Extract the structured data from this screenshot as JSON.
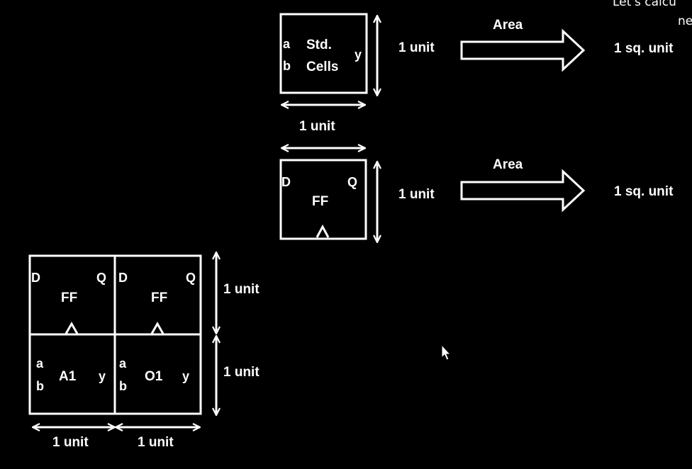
{
  "caption": {
    "line1": "Let's calcu",
    "line2": "ne"
  },
  "std_cell": {
    "pin_a": "a",
    "pin_b": "b",
    "pin_y": "y",
    "name_line1": "Std.",
    "name_line2": "Cells",
    "height_label": "1 unit",
    "width_label": "1 unit",
    "area_label": "Area",
    "area_result": "1 sq. unit"
  },
  "ff_cell": {
    "pin_d": "D",
    "pin_q": "Q",
    "name": "FF",
    "height_label": "1 unit",
    "area_label": "Area",
    "area_result": "1 sq. unit"
  },
  "grid": {
    "ff_left": {
      "pin_d": "D",
      "pin_q": "Q",
      "name": "FF"
    },
    "ff_right": {
      "pin_d": "D",
      "pin_q": "Q",
      "name": "FF"
    },
    "and_cell": {
      "pin_a": "a",
      "pin_b": "b",
      "name": "A1",
      "pin_y": "y"
    },
    "or_cell": {
      "pin_a": "a",
      "pin_b": "b",
      "name": "O1",
      "pin_y": "y"
    },
    "height_top_label": "1 unit",
    "height_bottom_label": "1 unit",
    "width_left_label": "1 unit",
    "width_right_label": "1 unit"
  }
}
